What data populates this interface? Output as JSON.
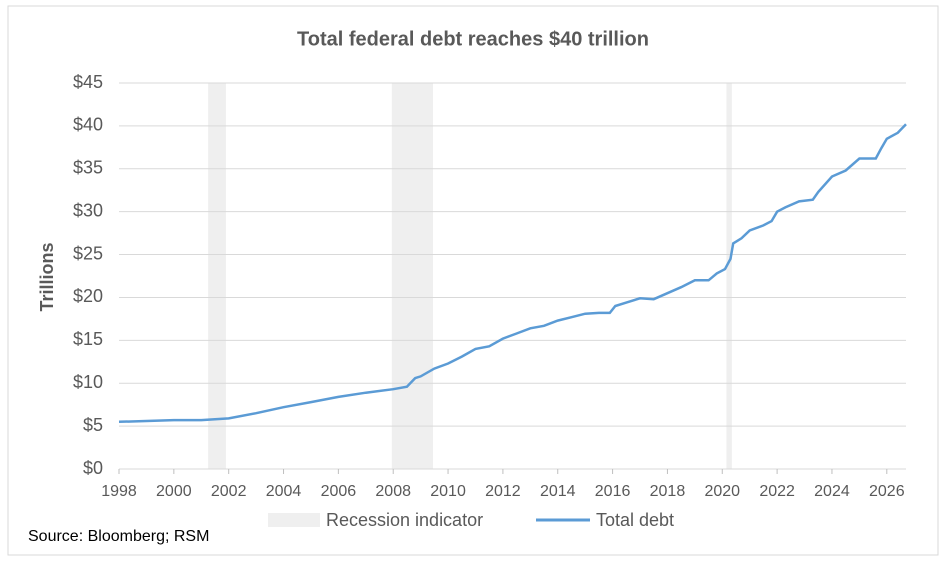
{
  "chart_data": {
    "type": "line",
    "title": "Total federal debt reaches $40 trillion",
    "y_label": "Trillions",
    "source": "Source: Bloomberg; RSM",
    "xlim": [
      1998,
      2026.7
    ],
    "xticks": [
      1998,
      2000,
      2002,
      2004,
      2006,
      2008,
      2010,
      2012,
      2014,
      2016,
      2018,
      2020,
      2022,
      2024,
      2026
    ],
    "ylim": [
      0,
      45
    ],
    "yticks": [
      {
        "value": 0,
        "label": "$0"
      },
      {
        "value": 5,
        "label": "$5"
      },
      {
        "value": 10,
        "label": "$10"
      },
      {
        "value": 15,
        "label": "$15"
      },
      {
        "value": 20,
        "label": "$20"
      },
      {
        "value": 25,
        "label": "$25"
      },
      {
        "value": 30,
        "label": "$30"
      },
      {
        "value": 35,
        "label": "$35"
      },
      {
        "value": 40,
        "label": "$40"
      },
      {
        "value": 45,
        "label": "$45"
      }
    ],
    "grid": true,
    "recessions": {
      "name": "Recession indicator",
      "color": "#efefef",
      "periods": [
        [
          2001.25,
          2001.9
        ],
        [
          2007.95,
          2009.45
        ],
        [
          2020.15,
          2020.35
        ]
      ]
    },
    "series": [
      {
        "name": "Total debt",
        "color": "#5b9bd5",
        "x": [
          1998,
          1999,
          2000,
          2001,
          2002,
          2003,
          2004,
          2005,
          2006,
          2007,
          2008,
          2008.5,
          2008.8,
          2009,
          2009.5,
          2010,
          2010.5,
          2011,
          2011.5,
          2012,
          2012.5,
          2013,
          2013.5,
          2014,
          2014.5,
          2015,
          2015.5,
          2015.9,
          2016.1,
          2016.5,
          2017,
          2017.5,
          2018,
          2018.5,
          2019,
          2019.5,
          2019.8,
          2020.1,
          2020.3,
          2020.4,
          2020.7,
          2021,
          2021.5,
          2021.8,
          2022,
          2022.3,
          2022.8,
          2023.3,
          2023.5,
          2024,
          2024.5,
          2025,
          2025.6,
          2025.8,
          2026,
          2026.4,
          2026.7
        ],
        "values": [
          5.5,
          5.6,
          5.7,
          5.7,
          5.9,
          6.5,
          7.2,
          7.8,
          8.4,
          8.9,
          9.3,
          9.6,
          10.6,
          10.8,
          11.7,
          12.3,
          13.1,
          14.0,
          14.3,
          15.2,
          15.8,
          16.4,
          16.7,
          17.3,
          17.7,
          18.1,
          18.2,
          18.2,
          19.0,
          19.4,
          19.9,
          19.8,
          20.5,
          21.2,
          22.0,
          22.0,
          22.8,
          23.3,
          24.5,
          26.3,
          26.9,
          27.8,
          28.4,
          28.9,
          30.0,
          30.5,
          31.2,
          31.4,
          32.3,
          34.1,
          34.8,
          36.2,
          36.2,
          37.4,
          38.5,
          39.2,
          40.2
        ]
      }
    ]
  }
}
